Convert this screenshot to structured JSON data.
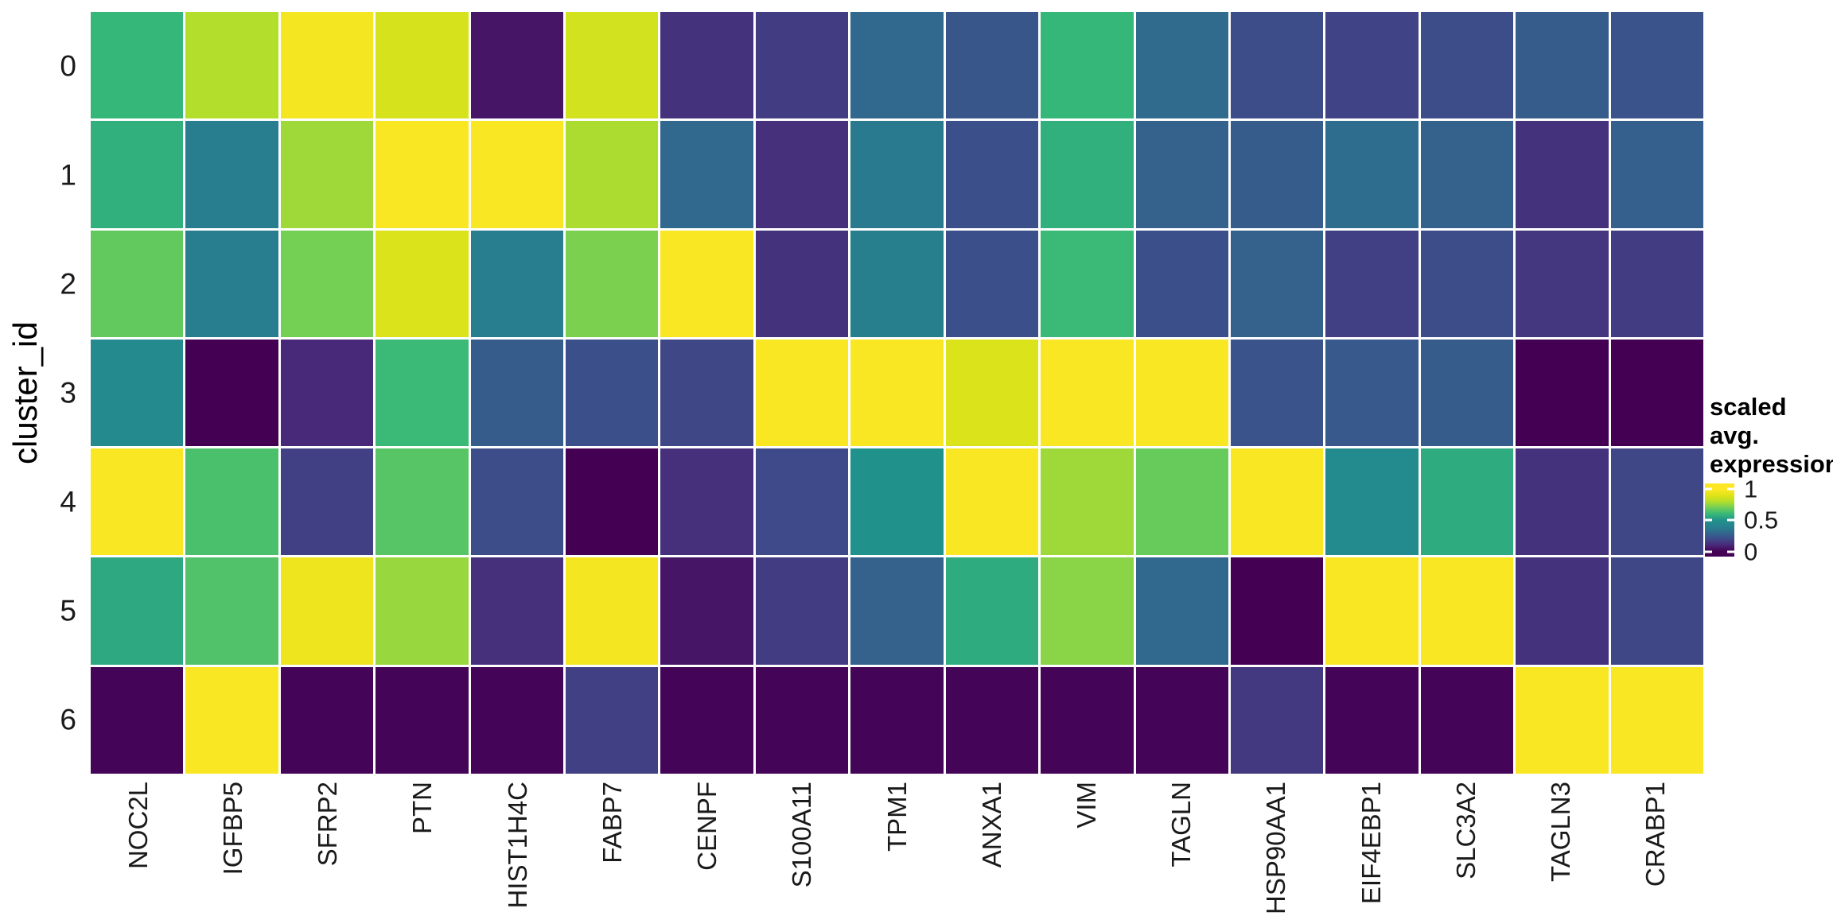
{
  "chart_data": {
    "type": "heatmap",
    "title": "",
    "xlabel": "",
    "ylabel": "cluster_id",
    "columns": [
      "NOC2L",
      "IGFBP5",
      "SFRP2",
      "PTN",
      "HIST1H4C",
      "FABP7",
      "CENPF",
      "S100A11",
      "TPM1",
      "ANXA1",
      "VIM",
      "TAGLN",
      "HSP90AA1",
      "EIF4EBP1",
      "SLC3A2",
      "TAGLN3",
      "CRABP1"
    ],
    "rows": [
      "0",
      "1",
      "2",
      "3",
      "4",
      "5",
      "6"
    ],
    "values": [
      [
        0.6,
        0.8,
        0.97,
        0.88,
        0.05,
        0.87,
        0.13,
        0.16,
        0.3,
        0.24,
        0.6,
        0.31,
        0.21,
        0.18,
        0.21,
        0.26,
        0.23
      ],
      [
        0.58,
        0.38,
        0.77,
        0.99,
        0.99,
        0.79,
        0.3,
        0.12,
        0.37,
        0.22,
        0.58,
        0.28,
        0.26,
        0.32,
        0.28,
        0.13,
        0.27
      ],
      [
        0.68,
        0.38,
        0.71,
        0.89,
        0.38,
        0.72,
        0.99,
        0.13,
        0.39,
        0.22,
        0.61,
        0.22,
        0.28,
        0.17,
        0.21,
        0.14,
        0.16
      ],
      [
        0.45,
        0.0,
        0.1,
        0.61,
        0.26,
        0.22,
        0.19,
        0.99,
        0.99,
        0.89,
        0.99,
        0.99,
        0.23,
        0.25,
        0.26,
        0.0,
        0.0
      ],
      [
        0.99,
        0.64,
        0.17,
        0.66,
        0.21,
        0.0,
        0.12,
        0.2,
        0.5,
        0.99,
        0.77,
        0.69,
        0.99,
        0.46,
        0.57,
        0.13,
        0.19
      ],
      [
        0.56,
        0.65,
        0.95,
        0.76,
        0.12,
        0.97,
        0.05,
        0.16,
        0.28,
        0.57,
        0.74,
        0.3,
        0.0,
        0.99,
        0.99,
        0.13,
        0.19
      ],
      [
        0.01,
        0.99,
        0.01,
        0.01,
        0.01,
        0.17,
        0.01,
        0.01,
        0.01,
        0.01,
        0.01,
        0.01,
        0.15,
        0.01,
        0.01,
        0.99,
        0.99
      ]
    ],
    "value_range": [
      0,
      1
    ],
    "grid_gap_color": "#ffffff",
    "legend": {
      "title_line1": "scaled avg.",
      "title_line2": "expression",
      "position": "right",
      "ticks": [
        "1",
        "0.5",
        "0"
      ],
      "tick_values": [
        1,
        0.5,
        0
      ],
      "tick_positions_pct": [
        8,
        50.5,
        93
      ]
    },
    "colormap": {
      "name": "viridis",
      "stops": [
        "#440154",
        "#482878",
        "#3e4a89",
        "#31688e",
        "#26828e",
        "#21918c",
        "#35b779",
        "#6dcd59",
        "#b4de2c",
        "#dfe318",
        "#fde725"
      ]
    }
  }
}
